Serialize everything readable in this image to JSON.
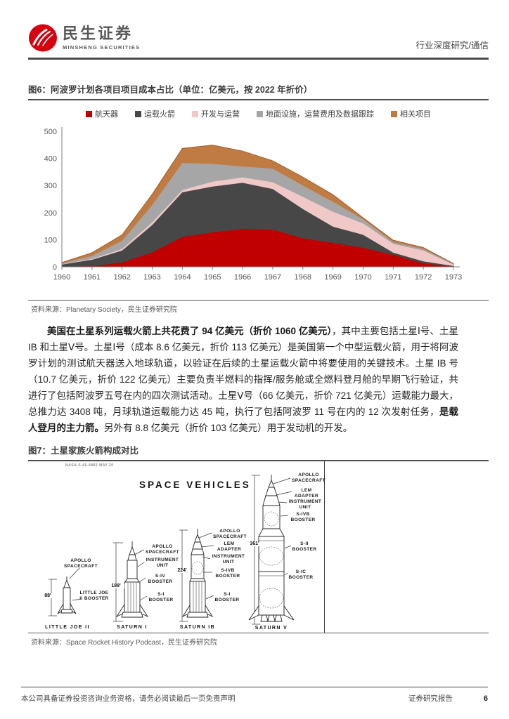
{
  "header": {
    "brand_cn": "民生证券",
    "brand_en": "MINSHENG SECURITIES",
    "section": "行业深度研究/通信"
  },
  "figure6": {
    "title": "图6：阿波罗计划各项目项目成本占比（单位：亿美元，按 2022 年折价）",
    "source": "资料来源：Planetary Society，民生证券研究院"
  },
  "chart_data": {
    "type": "area",
    "stacked": true,
    "title": "阿波罗计划各项目项目成本占比",
    "unit": "亿美元（按2022年折价）",
    "grid": false,
    "legend_position": "top",
    "categories": [
      1960,
      1961,
      1962,
      1963,
      1964,
      1965,
      1966,
      1967,
      1968,
      1969,
      1970,
      1971,
      1972,
      1973
    ],
    "ylim": [
      0,
      500
    ],
    "yticks": [
      0,
      100,
      200,
      300,
      400,
      500
    ],
    "series": [
      {
        "name": "航天器",
        "color": "#C00000",
        "values": [
          1,
          2,
          16,
          53,
          110,
          127,
          140,
          137,
          105,
          88,
          70,
          44,
          12,
          1
        ]
      },
      {
        "name": "运载火箭",
        "color": "#474747",
        "values": [
          7,
          24,
          44,
          101,
          165,
          169,
          170,
          150,
          108,
          60,
          48,
          8,
          8,
          2
        ]
      },
      {
        "name": "开发与运营",
        "color": "#F0C8C8",
        "values": [
          1,
          3,
          6,
          10,
          8,
          18,
          20,
          25,
          45,
          55,
          42,
          33,
          40,
          5
        ]
      },
      {
        "name": "地面设施，运营费用及数据跟踪",
        "color": "#A6A6A6",
        "values": [
          4,
          11,
          30,
          64,
          100,
          66,
          40,
          50,
          42,
          37,
          15,
          6,
          6,
          2
        ]
      },
      {
        "name": "相关项目",
        "color": "#C07B42",
        "edge_color": "#A65C2A",
        "values": [
          3,
          12,
          22,
          40,
          54,
          69,
          57,
          29,
          31,
          26,
          6,
          7,
          5,
          2
        ]
      }
    ]
  },
  "paragraph": {
    "segments": [
      {
        "bold": true,
        "text": "美国在土星系列运载火箭上共花费了 94 亿美元（折价 1060 亿美元）"
      },
      {
        "bold": false,
        "text": "，其中主要包括土星Ⅰ号、土星 IB 和土星Ⅴ号。土星Ⅰ号（成本 8.6 亿美元，折价 113 亿美元）是美国第一个中型运载火箭，用于将阿波罗计划的测试航天器送入地球轨道，以验证在后续的土星运载火箭中将要使用的关键技术。土星 IB 号（10.7 亿美元，折价 122 亿美元）主要负责半燃料的指挥/服务舱或全燃料登月舱的早期飞行验证，共进行了包括阿波罗五号在内的四次测试活动。土星Ⅴ号（66 亿美元，折价 721 亿美元）运载能力最大，总推力达 3408 吨，月球轨道运载能力达 45 吨，执行了包括阿波罗 11 号在内的 12 次发射任务，"
      },
      {
        "bold": true,
        "text": "是载人登月的主力箭。"
      },
      {
        "bold": false,
        "text": "另外有 8.8 亿美元（折价 103 亿美元）用于发动机的开发。"
      }
    ]
  },
  "figure7": {
    "title": "图7：土星家族火箭构成对比",
    "source": "资料来源：Space Rocket History Podcast，民生证券研究院",
    "image": {
      "ref_code": "NASA-S-66-4882 MAY 20",
      "title": "SPACE VEHICLES",
      "vehicles": [
        {
          "name": "LITTLE JOE II",
          "height": "88'",
          "labels": {
            "apollo": "APOLLO SPACECRAFT",
            "booster": "LITTLE JOE II BOOSTER"
          }
        },
        {
          "name": "SATURN I",
          "height": "188'",
          "labels": {
            "apollo": "APOLLO SPACECRAFT",
            "iu": "INSTRUMENT UNIT",
            "s4": "S-IV BOOSTER",
            "s1": "S-I BOOSTER"
          }
        },
        {
          "name": "SATURN IB",
          "height": "224'",
          "labels": {
            "apollo": "APOLLO SPACECRAFT",
            "lem": "LEM ADAPTER",
            "iu": "INSTRUMENT UNIT",
            "s4b": "S-IVB BOOSTER",
            "s1": "S-I BOOSTER"
          }
        },
        {
          "name": "SATURN V",
          "height": "361'",
          "labels": {
            "apollo": "APOLLO SPACECRAFT",
            "lem": "LEM ADAPTER",
            "iu": "INSTRUMENT UNIT",
            "s4b": "S-IVB BOOSTER",
            "s2": "S-II BOOSTER",
            "s1c": "S-IC BOOSTER"
          }
        }
      ]
    }
  },
  "footer": {
    "disclaimer": "本公司具备证券投资咨询业务资格，请务必阅读最后一页免责声明",
    "report_type": "证券研究报告",
    "page_number": "6"
  }
}
